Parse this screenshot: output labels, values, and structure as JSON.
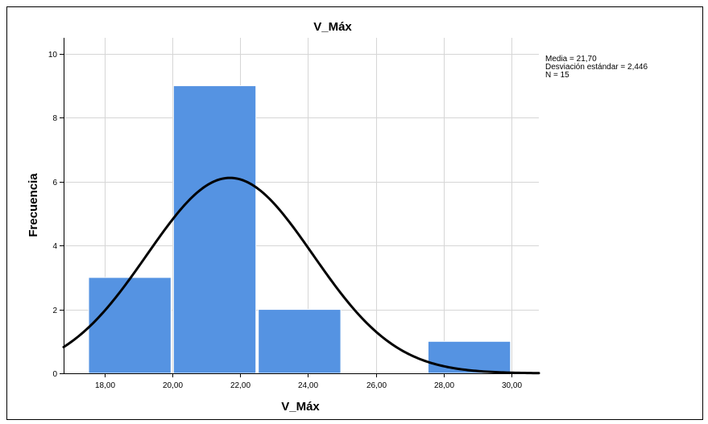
{
  "chart_data": {
    "type": "bar",
    "subtype": "histogram",
    "title": "V_Máx",
    "xlabel": "V_Máx",
    "ylabel": "Frecuencia",
    "bins": [
      {
        "start": 17.5,
        "end": 20.0,
        "count": 3
      },
      {
        "start": 20.0,
        "end": 22.5,
        "count": 9
      },
      {
        "start": 22.5,
        "end": 25.0,
        "count": 2
      },
      {
        "start": 25.0,
        "end": 27.5,
        "count": 0
      },
      {
        "start": 27.5,
        "end": 30.0,
        "count": 1
      }
    ],
    "x_ticks": [
      "18,00",
      "20,00",
      "22,00",
      "24,00",
      "26,00",
      "28,00",
      "30,00"
    ],
    "x_tick_values": [
      18,
      20,
      22,
      24,
      26,
      28,
      30
    ],
    "xlim": [
      16.8,
      30.8
    ],
    "y_ticks": [
      "0",
      "2",
      "4",
      "6",
      "8",
      "10"
    ],
    "y_tick_values": [
      0,
      2,
      4,
      6,
      8,
      10
    ],
    "ylim": [
      0,
      10.5
    ],
    "grid": true,
    "bar_color": "#5593e2",
    "normal_curve": {
      "mean": 21.7,
      "sd": 2.446,
      "n": 15,
      "bin_width": 2.5,
      "color": "#000000"
    },
    "stats": [
      "Media = 21,70",
      "Desviación estándar = 2,446",
      "N = 15"
    ],
    "stats_position": "top-right"
  }
}
